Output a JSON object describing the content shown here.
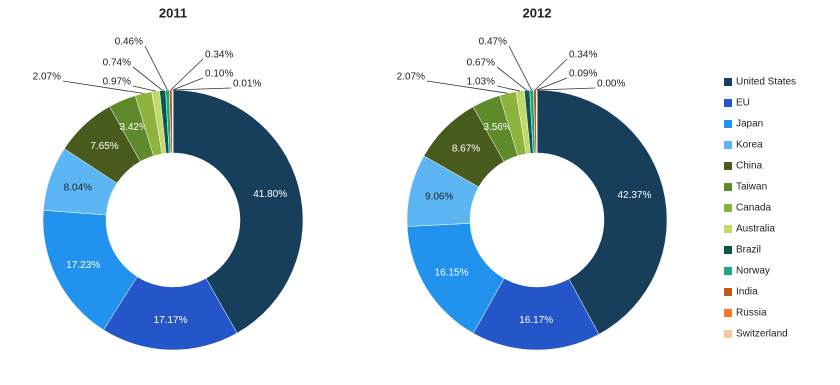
{
  "chart_data": [
    {
      "type": "pie",
      "title": "2011",
      "categories": [
        "United States",
        "EU",
        "Japan",
        "Korea",
        "China",
        "Taiwan",
        "Canada",
        "Australia",
        "Brazil",
        "Norway",
        "India",
        "Russia",
        "Switzerland"
      ],
      "values": [
        41.8,
        17.17,
        17.23,
        8.04,
        7.65,
        3.42,
        2.07,
        0.97,
        0.74,
        0.46,
        0.34,
        0.1,
        0.01
      ],
      "value_labels": [
        "41.80%",
        "17.17%",
        "17.23%",
        "8.04%",
        "7.65%",
        "3.42%",
        "2.07%",
        "0.97%",
        "0.74%",
        "0.46%",
        "0.34%",
        "0.10%",
        "0.01%"
      ],
      "colors": [
        "#173f5c",
        "#2455c9",
        "#2193ee",
        "#5cb6f4",
        "#485a1c",
        "#5d8a2b",
        "#8db33c",
        "#c1d86a",
        "#0e574a",
        "#1aa88b",
        "#c15b12",
        "#f07b22",
        "#f5c79c"
      ],
      "legend": "right"
    },
    {
      "type": "pie",
      "title": "2012",
      "categories": [
        "United States",
        "EU",
        "Japan",
        "Korea",
        "China",
        "Taiwan",
        "Canada",
        "Australia",
        "Brazil",
        "Norway",
        "India",
        "Russia",
        "Switzerland"
      ],
      "values": [
        42.37,
        16.17,
        16.15,
        9.06,
        8.67,
        3.56,
        2.07,
        1.03,
        0.67,
        0.47,
        0.34,
        0.09,
        0.0
      ],
      "value_labels": [
        "42.37%",
        "16.17%",
        "16.15%",
        "9.06%",
        "8.67%",
        "3.56%",
        "2.07%",
        "1.03%",
        "0.67%",
        "0.47%",
        "0.34%",
        "0.09%",
        "0.00%"
      ],
      "colors": [
        "#173f5c",
        "#2455c9",
        "#2193ee",
        "#5cb6f4",
        "#485a1c",
        "#5d8a2b",
        "#8db33c",
        "#c1d86a",
        "#0e574a",
        "#1aa88b",
        "#c15b12",
        "#f07b22",
        "#f5c79c"
      ],
      "legend": "right"
    }
  ]
}
